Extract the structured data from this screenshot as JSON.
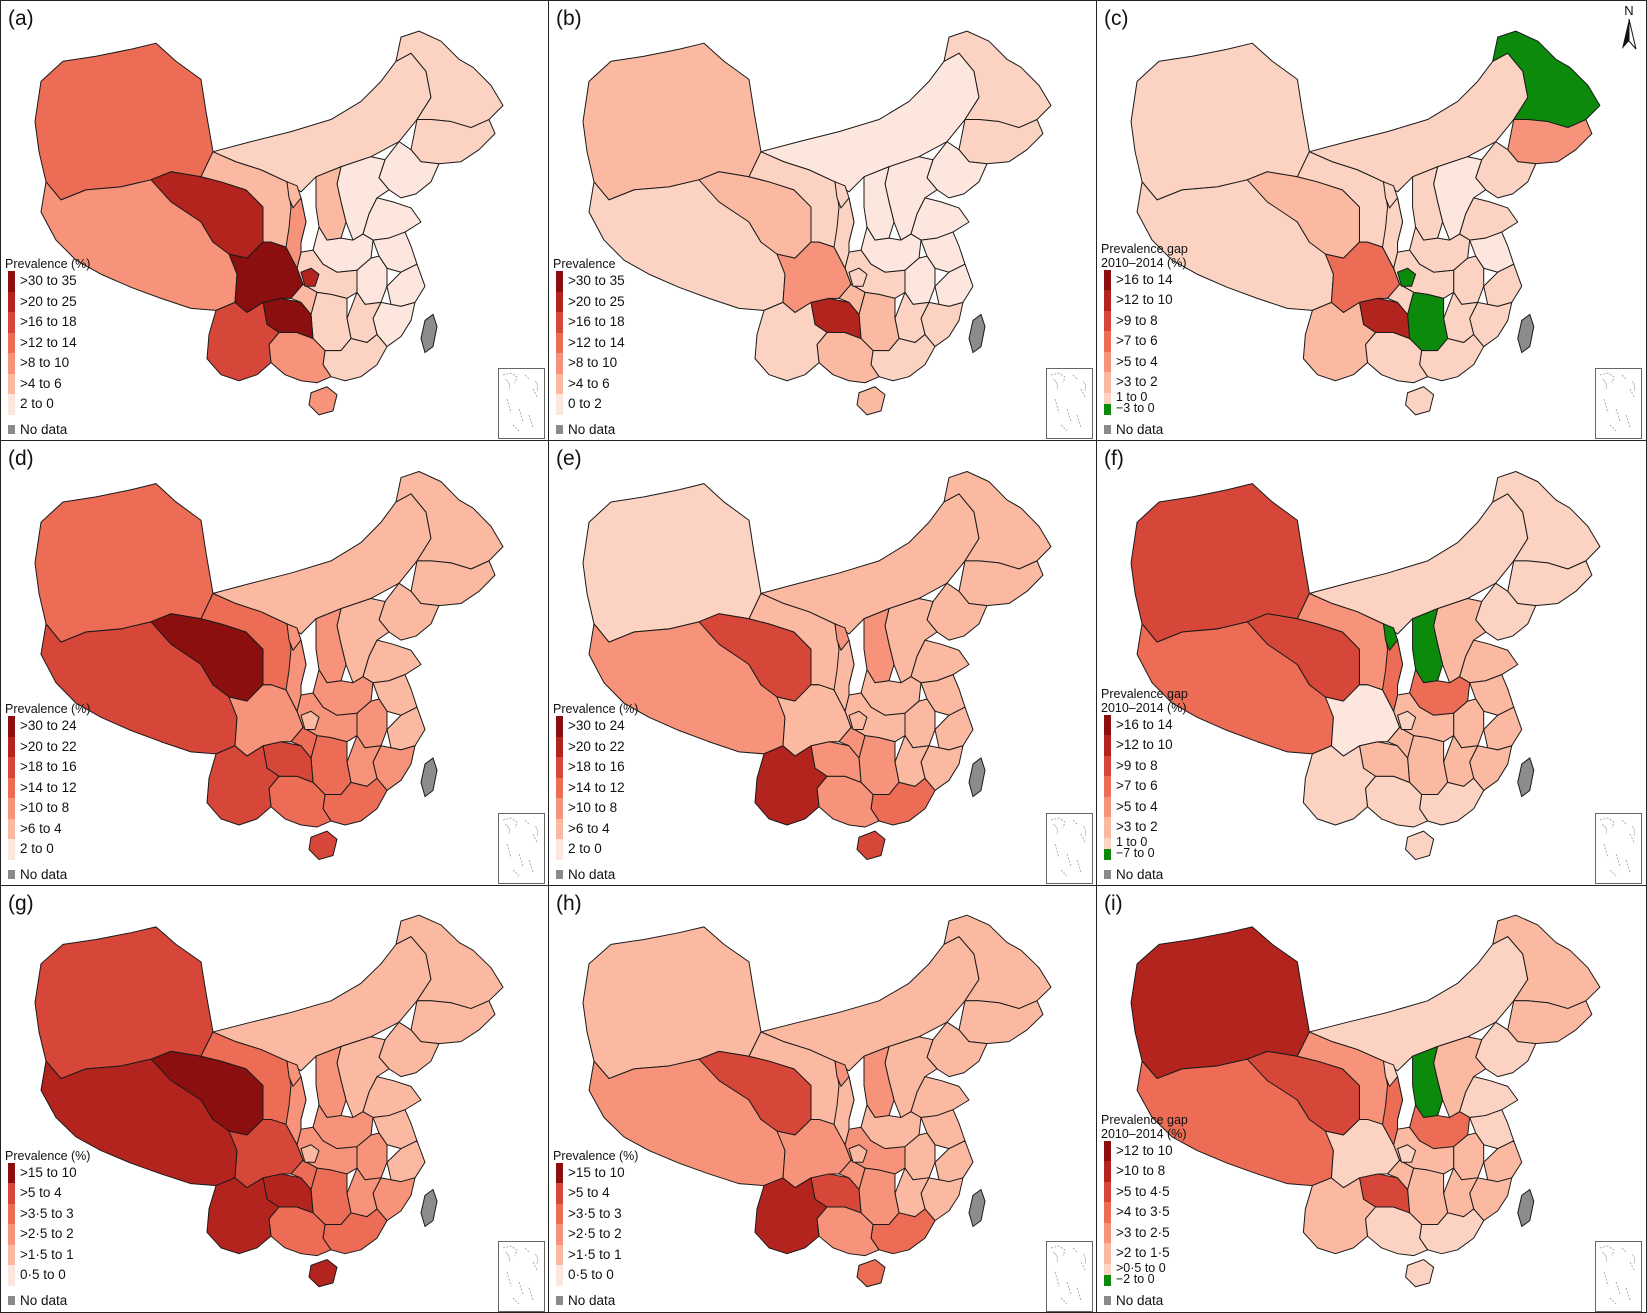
{
  "colors": {
    "c1": "#fde6dd",
    "c2": "#fcd3c2",
    "c3": "#fbb9a2",
    "c4": "#f6937a",
    "c5": "#ec6c55",
    "c6": "#d6473a",
    "c7": "#b3241f",
    "c8": "#8c0f0f",
    "green": "#0b8a0b",
    "gray": "#8a8a8a",
    "taiwan": "#8c8c8c"
  },
  "panels": [
    {
      "label": "(a)",
      "legend": {
        "title": [
          "Prevalence (%)"
        ],
        "items": [
          ">30 to 35",
          ">20 to 25",
          ">16 to 18",
          ">12 to 14",
          ">8 to 10",
          ">4 to 6",
          "2 to 0",
          "No data"
        ]
      },
      "fills": {
        "xinjiang": "c5",
        "tibet": "c4",
        "qinghai": "c7",
        "gansu": "c3",
        "inner_mongolia": "c2",
        "heilongjiang": "c2",
        "jilin": "c2",
        "liaoning": "c1",
        "hebei": "c1",
        "shanxi": "c3",
        "henan": "c1",
        "shandong": "c1",
        "jiangsu": "c1",
        "anhui": "c1",
        "zhejiang": "c1",
        "fujian": "c1",
        "jiangxi": "c2",
        "hubei": "c2",
        "hunan": "c2",
        "guangdong": "c2",
        "guangxi": "c4",
        "hainan": "c4",
        "yunnan": "c6",
        "guizhou": "c8",
        "sichuan": "c8",
        "shaanxi": "c4",
        "ningxia": "c3",
        "chongqing": "c3",
        "hotspot": "c7"
      }
    },
    {
      "label": "(b)",
      "legend": {
        "title": [
          "Prevalence"
        ],
        "items": [
          ">30 to 35",
          ">20 to 25",
          ">16 to 18",
          ">12 to 14",
          ">8 to 10",
          ">4 to 6",
          "0 to 2",
          "No data"
        ]
      },
      "fills": {
        "xinjiang": "c3",
        "tibet": "c2",
        "qinghai": "c3",
        "gansu": "c2",
        "inner_mongolia": "c1",
        "heilongjiang": "c2",
        "jilin": "c2",
        "liaoning": "c1",
        "hebei": "c1",
        "shanxi": "c1",
        "henan": "c1",
        "shandong": "c1",
        "jiangsu": "c1",
        "anhui": "c1",
        "zhejiang": "c1",
        "fujian": "c2",
        "jiangxi": "c2",
        "hubei": "c2",
        "hunan": "c3",
        "guangdong": "c2",
        "guangxi": "c3",
        "hainan": "c3",
        "yunnan": "c2",
        "guizhou": "c7",
        "sichuan": "c4",
        "shaanxi": "c2",
        "ningxia": "c2",
        "chongqing": "c3",
        "hotspot": "c2"
      }
    },
    {
      "label": "(c)",
      "legend": {
        "title": [
          "Prevalence gap",
          "2010–2014 (%)"
        ],
        "items": [
          ">16 to 14",
          ">12 to 10",
          ">9 to 8",
          ">7 to 6",
          ">5 to 4",
          ">3 to 2",
          "1 to 0",
          "−3 to 0",
          "No data"
        ]
      },
      "fills": {
        "xinjiang": "c2",
        "tibet": "c2",
        "qinghai": "c3",
        "gansu": "c2",
        "inner_mongolia": "c2",
        "heilongjiang": "green",
        "jilin": "c4",
        "liaoning": "c2",
        "hebei": "c1",
        "shanxi": "c2",
        "henan": "c2",
        "shandong": "c2",
        "jiangsu": "c1",
        "anhui": "c2",
        "zhejiang": "c2",
        "fujian": "c2",
        "jiangxi": "c2",
        "hubei": "c2",
        "hunan": "green",
        "guangdong": "c2",
        "guangxi": "c2",
        "hainan": "c2",
        "yunnan": "c3",
        "guizhou": "c7",
        "sichuan": "c5",
        "shaanxi": "c2",
        "ningxia": "c2",
        "chongqing": "c2",
        "hotspot": "green"
      }
    },
    {
      "label": "(d)",
      "legend": {
        "title": [
          "Prevalence (%)"
        ],
        "items": [
          ">30 to 24",
          ">20 to 22",
          ">18 to 16",
          ">14 to 12",
          ">10 to 8",
          ">6 to 4",
          "2 to 0",
          "No data"
        ]
      },
      "fills": {
        "xinjiang": "c5",
        "tibet": "c6",
        "qinghai": "c8",
        "gansu": "c5",
        "inner_mongolia": "c3",
        "heilongjiang": "c3",
        "jilin": "c3",
        "liaoning": "c3",
        "hebei": "c3",
        "shanxi": "c4",
        "henan": "c4",
        "shandong": "c3",
        "jiangsu": "c3",
        "anhui": "c4",
        "zhejiang": "c3",
        "fujian": "c4",
        "jiangxi": "c4",
        "hubei": "c4",
        "hunan": "c5",
        "guangdong": "c5",
        "guangxi": "c5",
        "hainan": "c6",
        "yunnan": "c6",
        "guizhou": "c6",
        "sichuan": "c4",
        "shaanxi": "c4",
        "ningxia": "c4",
        "chongqing": "c5",
        "hotspot": "c3"
      }
    },
    {
      "label": "(e)",
      "legend": {
        "title": [
          "Prevalence (%)"
        ],
        "items": [
          ">30 to 24",
          ">20 to 22",
          ">18 to 16",
          ">14 to 12",
          ">10 to 8",
          ">6 to 4",
          "2 to 0",
          "No data"
        ]
      },
      "fills": {
        "xinjiang": "c2",
        "tibet": "c4",
        "qinghai": "c6",
        "gansu": "c3",
        "inner_mongolia": "c3",
        "heilongjiang": "c3",
        "jilin": "c3",
        "liaoning": "c3",
        "hebei": "c3",
        "shanxi": "c4",
        "henan": "c3",
        "shandong": "c3",
        "jiangsu": "c3",
        "anhui": "c3",
        "zhejiang": "c3",
        "fujian": "c3",
        "jiangxi": "c3",
        "hubei": "c3",
        "hunan": "c4",
        "guangdong": "c5",
        "guangxi": "c4",
        "hainan": "c6",
        "yunnan": "c7",
        "guizhou": "c4",
        "sichuan": "c3",
        "shaanxi": "c3",
        "ningxia": "c4",
        "chongqing": "c4",
        "hotspot": "c3"
      }
    },
    {
      "label": "(f)",
      "legend": {
        "title": [
          "Prevalence gap",
          "2010–2014 (%)"
        ],
        "items": [
          ">16 to 14",
          ">12 to 10",
          ">9 to 8",
          ">7 to 6",
          ">5 to 4",
          ">3 to 2",
          "1 to 0",
          "−7 to 0",
          "No data"
        ]
      },
      "fills": {
        "xinjiang": "c6",
        "tibet": "c5",
        "qinghai": "c6",
        "gansu": "c4",
        "inner_mongolia": "c2",
        "heilongjiang": "c2",
        "jilin": "c2",
        "liaoning": "c2",
        "hebei": "c3",
        "shanxi": "green",
        "henan": "c5",
        "shandong": "c3",
        "jiangsu": "c3",
        "anhui": "c3",
        "zhejiang": "c3",
        "fujian": "c3",
        "jiangxi": "c3",
        "hubei": "c3",
        "hunan": "c3",
        "guangdong": "c2",
        "guangxi": "c2",
        "hainan": "c2",
        "yunnan": "c2",
        "guizhou": "c3",
        "sichuan": "c1",
        "shaanxi": "c5",
        "ningxia": "green",
        "chongqing": "c3",
        "hotspot": "c2"
      }
    },
    {
      "label": "(g)",
      "legend": {
        "title": [
          "Prevalence (%)"
        ],
        "items": [
          ">15 to 10",
          ">5 to 4",
          ">3·5 to 3",
          ">2·5 to 2",
          ">1·5 to 1",
          "0·5 to 0",
          "No data"
        ]
      },
      "fills": {
        "xinjiang": "c6",
        "tibet": "c7",
        "qinghai": "c8",
        "gansu": "c5",
        "inner_mongolia": "c3",
        "heilongjiang": "c3",
        "jilin": "c3",
        "liaoning": "c3",
        "hebei": "c3",
        "shanxi": "c4",
        "henan": "c4",
        "shandong": "c3",
        "jiangsu": "c3",
        "anhui": "c4",
        "zhejiang": "c3",
        "fujian": "c4",
        "jiangxi": "c4",
        "hubei": "c4",
        "hunan": "c5",
        "guangdong": "c5",
        "guangxi": "c5",
        "hainan": "c7",
        "yunnan": "c7",
        "guizhou": "c7",
        "sichuan": "c6",
        "shaanxi": "c4",
        "ningxia": "c4",
        "chongqing": "c5",
        "hotspot": "c3"
      }
    },
    {
      "label": "(h)",
      "legend": {
        "title": [
          "Prevalence (%)"
        ],
        "items": [
          ">15 to 10",
          ">5 to 4",
          ">3·5 to 3",
          ">2·5 to 2",
          ">1·5 to 1",
          "0·5 to 0",
          "No data"
        ]
      },
      "fills": {
        "xinjiang": "c3",
        "tibet": "c4",
        "qinghai": "c6",
        "gansu": "c3",
        "inner_mongolia": "c3",
        "heilongjiang": "c3",
        "jilin": "c3",
        "liaoning": "c3",
        "hebei": "c3",
        "shanxi": "c4",
        "henan": "c3",
        "shandong": "c3",
        "jiangsu": "c3",
        "anhui": "c3",
        "zhejiang": "c3",
        "fujian": "c3",
        "jiangxi": "c3",
        "hubei": "c4",
        "hunan": "c4",
        "guangdong": "c5",
        "guangxi": "c4",
        "hainan": "c5",
        "yunnan": "c7",
        "guizhou": "c6",
        "sichuan": "c4",
        "shaanxi": "c3",
        "ningxia": "c4",
        "chongqing": "c4",
        "hotspot": "c3"
      }
    },
    {
      "label": "(i)",
      "legend": {
        "title": [
          "Prevalence gap",
          "2010–2014 (%)"
        ],
        "items": [
          ">12 to 10",
          ">10 to 8",
          ">5 to 4·5",
          ">4 to 3·5",
          ">3 to 2·5",
          ">2 to 1·5",
          ">0·5 to 0",
          "−2 to 0",
          "No data"
        ]
      },
      "fills": {
        "xinjiang": "c7",
        "tibet": "c5",
        "qinghai": "c6",
        "gansu": "c4",
        "inner_mongolia": "c2",
        "heilongjiang": "c3",
        "jilin": "c3",
        "liaoning": "c2",
        "hebei": "c3",
        "shanxi": "green",
        "henan": "c5",
        "shandong": "c2",
        "jiangsu": "c2",
        "anhui": "c3",
        "zhejiang": "c3",
        "fujian": "c3",
        "jiangxi": "c3",
        "hubei": "c3",
        "hunan": "c3",
        "guangdong": "c2",
        "guangxi": "c2",
        "hainan": "c2",
        "yunnan": "c3",
        "guizhou": "c6",
        "sichuan": "c2",
        "shaanxi": "c5",
        "ningxia": "c2",
        "chongqing": "c3",
        "hotspot": "c2"
      }
    }
  ],
  "compass": "N"
}
